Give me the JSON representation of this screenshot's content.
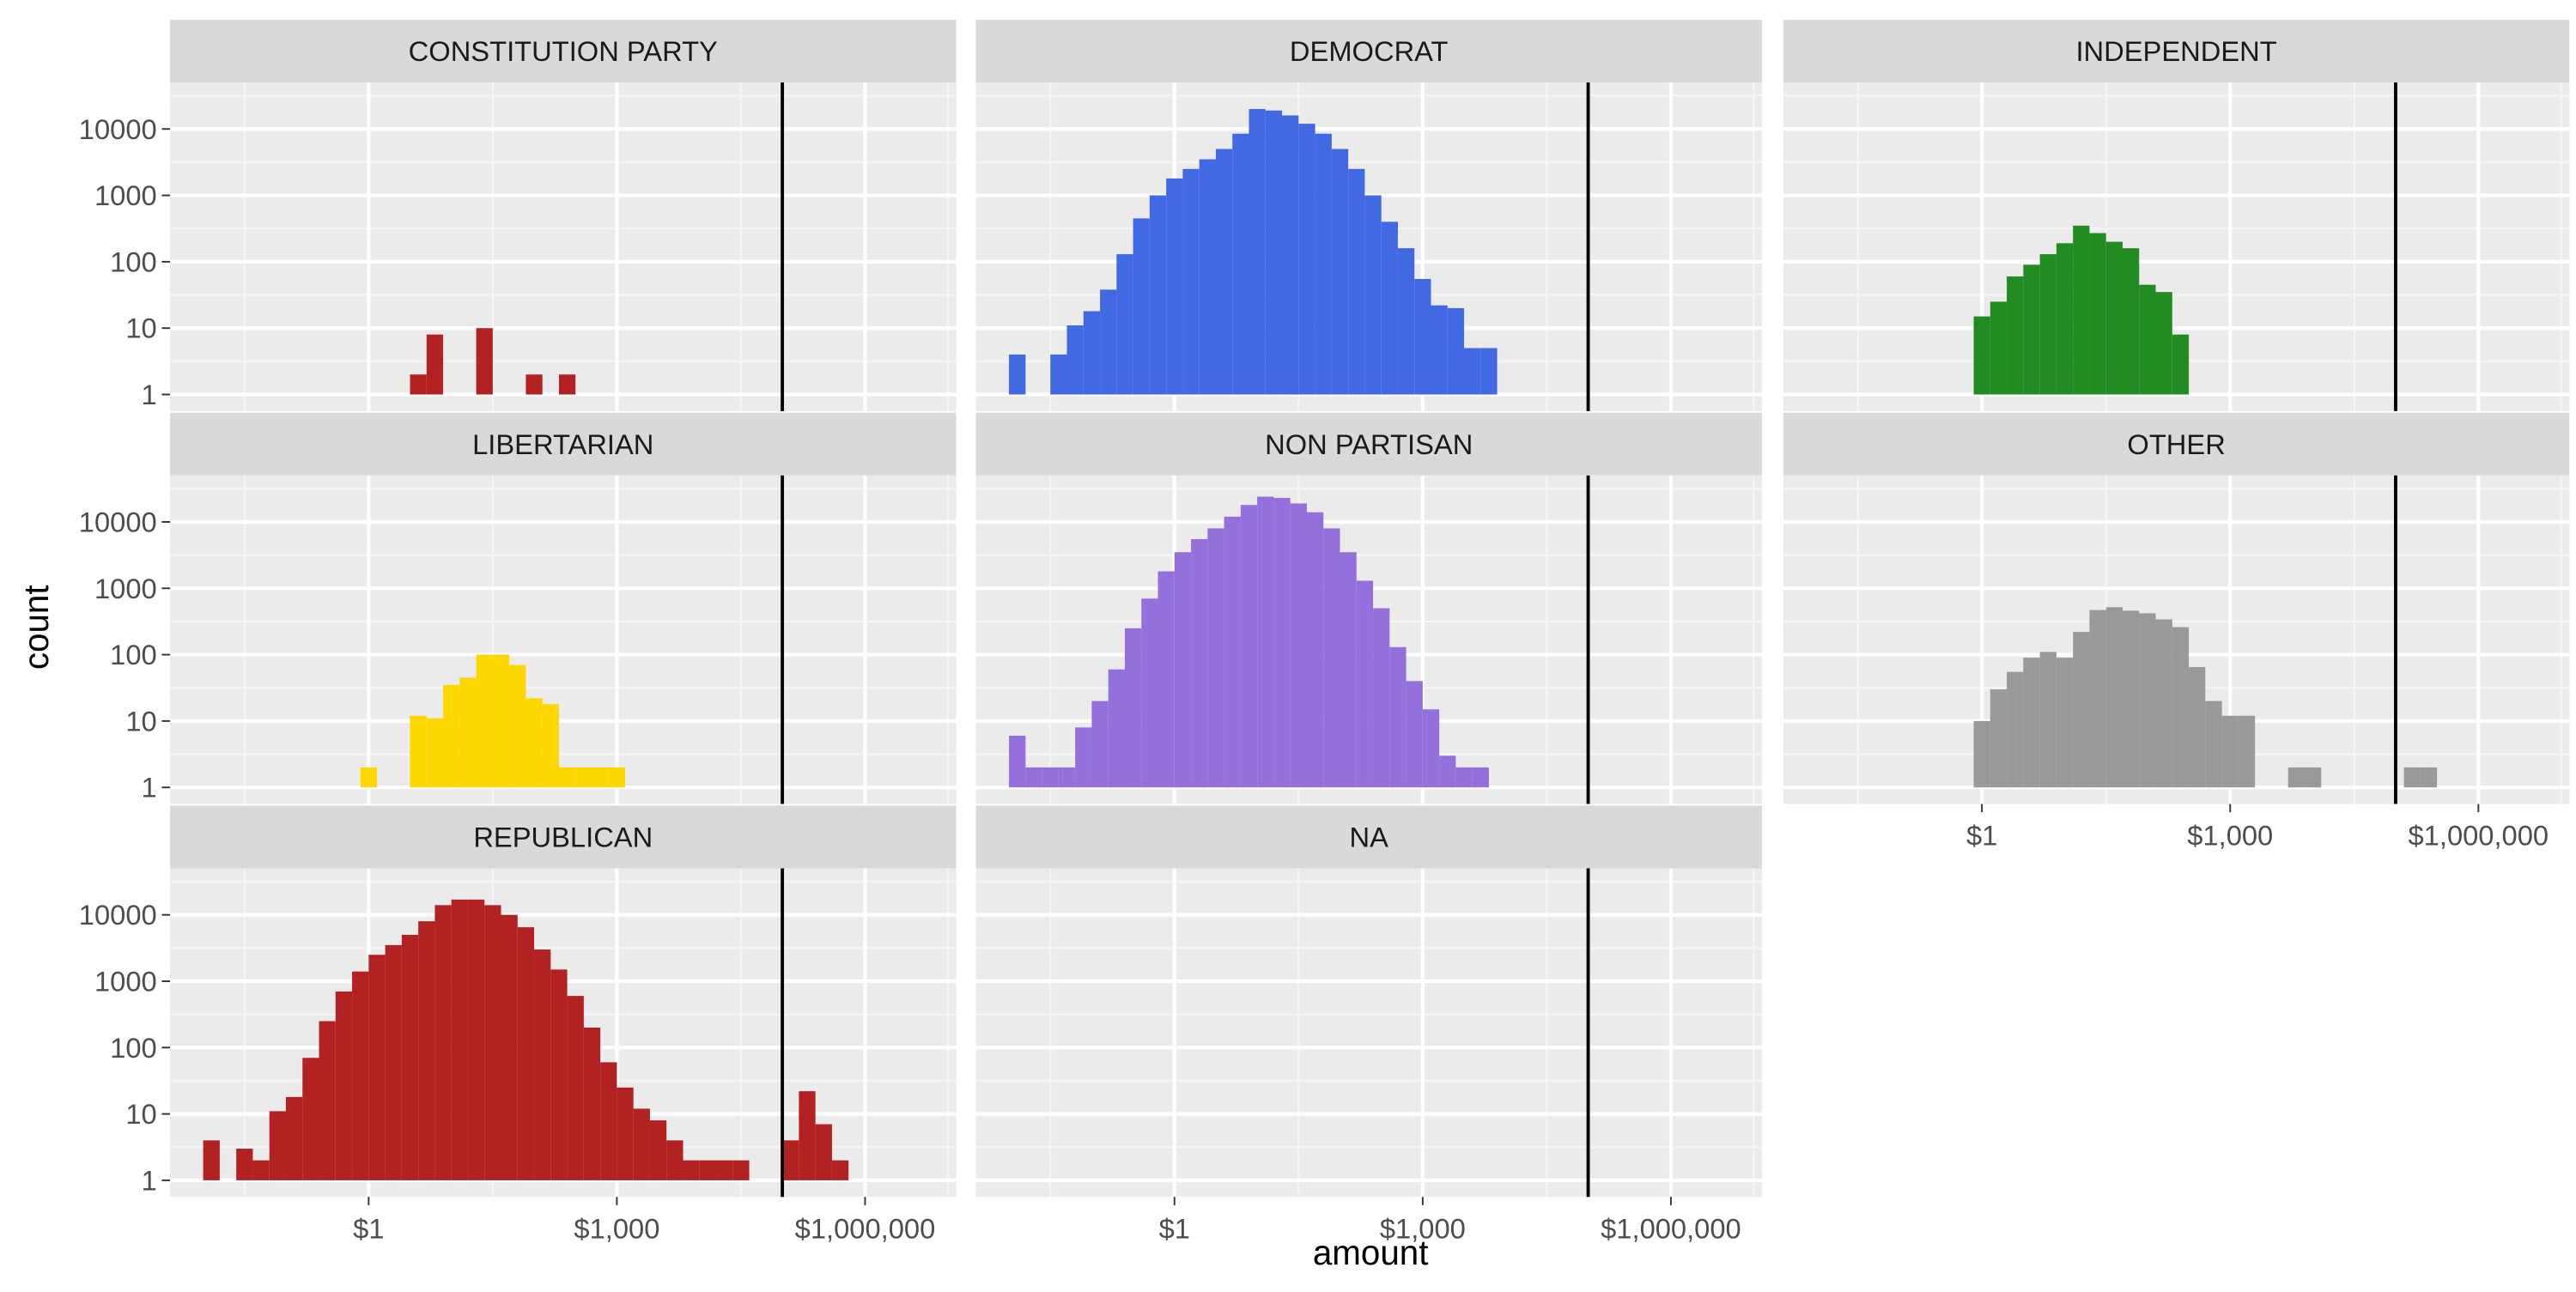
{
  "chart_data": {
    "type": "histogram",
    "facet_by": "party",
    "xlabel": "amount",
    "ylabel": "count",
    "x_scale": "log10",
    "y_scale": "log10",
    "x_ticks": [
      {
        "value": 1,
        "label": "$1"
      },
      {
        "value": 1000,
        "label": "$1,000"
      },
      {
        "value": 1000000,
        "label": "$1,000,000"
      }
    ],
    "y_ticks": [
      {
        "value": 1,
        "label": "1"
      },
      {
        "value": 10,
        "label": "10"
      },
      {
        "value": 100,
        "label": "100"
      },
      {
        "value": 1000,
        "label": "1000"
      },
      {
        "value": 10000,
        "label": "10000"
      }
    ],
    "reference_line_x": 100000,
    "bin_width_log10": 0.2,
    "grid": true,
    "legend": "none",
    "panels": [
      {
        "name": "CONSTITUTION PARTY",
        "color": "#B22222",
        "bins": [
          {
            "x_start": 3.162,
            "count": 2
          },
          {
            "x_start": 5.012,
            "count": 8
          },
          {
            "x_start": 19.95,
            "count": 10
          },
          {
            "x_start": 79.43,
            "count": 2
          },
          {
            "x_start": 199.5,
            "count": 2
          }
        ]
      },
      {
        "name": "DEMOCRAT",
        "color": "#4169E1",
        "bins": [
          {
            "x_start": 0.01,
            "count": 4
          },
          {
            "x_start": 0.03162,
            "count": 4
          },
          {
            "x_start": 0.05012,
            "count": 11
          },
          {
            "x_start": 0.07943,
            "count": 18
          },
          {
            "x_start": 0.1259,
            "count": 38
          },
          {
            "x_start": 0.1995,
            "count": 130
          },
          {
            "x_start": 0.3162,
            "count": 450
          },
          {
            "x_start": 0.5012,
            "count": 1000
          },
          {
            "x_start": 0.7943,
            "count": 1800
          },
          {
            "x_start": 1.259,
            "count": 2500
          },
          {
            "x_start": 1.995,
            "count": 3500
          },
          {
            "x_start": 3.162,
            "count": 5000
          },
          {
            "x_start": 5.012,
            "count": 8500
          },
          {
            "x_start": 7.943,
            "count": 20000
          },
          {
            "x_start": 12.59,
            "count": 19000
          },
          {
            "x_start": 19.95,
            "count": 16000
          },
          {
            "x_start": 31.62,
            "count": 12000
          },
          {
            "x_start": 50.12,
            "count": 8500
          },
          {
            "x_start": 79.43,
            "count": 5000
          },
          {
            "x_start": 125.9,
            "count": 2500
          },
          {
            "x_start": 199.5,
            "count": 1000
          },
          {
            "x_start": 316.2,
            "count": 400
          },
          {
            "x_start": 501.2,
            "count": 160
          },
          {
            "x_start": 794.3,
            "count": 55
          },
          {
            "x_start": 1259,
            "count": 22
          },
          {
            "x_start": 1995,
            "count": 20
          },
          {
            "x_start": 3162,
            "count": 5
          },
          {
            "x_start": 5012,
            "count": 5
          }
        ]
      },
      {
        "name": "INDEPENDENT",
        "color": "#228B22",
        "bins": [
          {
            "x_start": 0.7943,
            "count": 15
          },
          {
            "x_start": 1.259,
            "count": 25
          },
          {
            "x_start": 1.995,
            "count": 60
          },
          {
            "x_start": 3.162,
            "count": 90
          },
          {
            "x_start": 5.012,
            "count": 130
          },
          {
            "x_start": 7.943,
            "count": 190
          },
          {
            "x_start": 12.59,
            "count": 350
          },
          {
            "x_start": 19.95,
            "count": 270
          },
          {
            "x_start": 31.62,
            "count": 200
          },
          {
            "x_start": 50.12,
            "count": 160
          },
          {
            "x_start": 79.43,
            "count": 45
          },
          {
            "x_start": 125.9,
            "count": 35
          },
          {
            "x_start": 199.5,
            "count": 8
          }
        ]
      },
      {
        "name": "LIBERTARIAN",
        "color": "#FFD700",
        "bins": [
          {
            "x_start": 0.7943,
            "count": 2
          },
          {
            "x_start": 3.162,
            "count": 12
          },
          {
            "x_start": 5.012,
            "count": 11
          },
          {
            "x_start": 7.943,
            "count": 35
          },
          {
            "x_start": 12.59,
            "count": 45
          },
          {
            "x_start": 19.95,
            "count": 100
          },
          {
            "x_start": 31.62,
            "count": 100
          },
          {
            "x_start": 50.12,
            "count": 70
          },
          {
            "x_start": 79.43,
            "count": 22
          },
          {
            "x_start": 125.9,
            "count": 18
          },
          {
            "x_start": 199.5,
            "count": 2
          },
          {
            "x_start": 316.2,
            "count": 2
          },
          {
            "x_start": 501.2,
            "count": 2
          },
          {
            "x_start": 794.3,
            "count": 2
          }
        ]
      },
      {
        "name": "NON PARTISAN",
        "color": "#9370DB",
        "bins": [
          {
            "x_start": 0.01,
            "count": 6
          },
          {
            "x_start": 0.01585,
            "count": 2
          },
          {
            "x_start": 0.02512,
            "count": 2
          },
          {
            "x_start": 0.03981,
            "count": 2
          },
          {
            "x_start": 0.0631,
            "count": 8
          },
          {
            "x_start": 0.1,
            "count": 20
          },
          {
            "x_start": 0.1585,
            "count": 60
          },
          {
            "x_start": 0.2512,
            "count": 250
          },
          {
            "x_start": 0.3981,
            "count": 700
          },
          {
            "x_start": 0.631,
            "count": 1800
          },
          {
            "x_start": 1.0,
            "count": 3500
          },
          {
            "x_start": 1.585,
            "count": 5500
          },
          {
            "x_start": 2.512,
            "count": 8000
          },
          {
            "x_start": 3.981,
            "count": 12000
          },
          {
            "x_start": 6.31,
            "count": 18000
          },
          {
            "x_start": 10.0,
            "count": 24000
          },
          {
            "x_start": 15.85,
            "count": 23000
          },
          {
            "x_start": 25.12,
            "count": 19000
          },
          {
            "x_start": 39.81,
            "count": 14000
          },
          {
            "x_start": 63.1,
            "count": 8000
          },
          {
            "x_start": 100.0,
            "count": 3500
          },
          {
            "x_start": 158.5,
            "count": 1300
          },
          {
            "x_start": 251.2,
            "count": 500
          },
          {
            "x_start": 398.1,
            "count": 130
          },
          {
            "x_start": 631.0,
            "count": 40
          },
          {
            "x_start": 1000,
            "count": 15
          },
          {
            "x_start": 1585,
            "count": 3
          },
          {
            "x_start": 2512,
            "count": 2
          },
          {
            "x_start": 3981,
            "count": 2
          }
        ]
      },
      {
        "name": "OTHER",
        "color": "#999999",
        "bins": [
          {
            "x_start": 0.7943,
            "count": 10
          },
          {
            "x_start": 1.259,
            "count": 30
          },
          {
            "x_start": 1.995,
            "count": 55
          },
          {
            "x_start": 3.162,
            "count": 90
          },
          {
            "x_start": 5.012,
            "count": 110
          },
          {
            "x_start": 7.943,
            "count": 90
          },
          {
            "x_start": 12.59,
            "count": 220
          },
          {
            "x_start": 19.95,
            "count": 470
          },
          {
            "x_start": 31.62,
            "count": 520
          },
          {
            "x_start": 50.12,
            "count": 460
          },
          {
            "x_start": 79.43,
            "count": 420
          },
          {
            "x_start": 125.9,
            "count": 340
          },
          {
            "x_start": 199.5,
            "count": 260
          },
          {
            "x_start": 316.2,
            "count": 65
          },
          {
            "x_start": 501.2,
            "count": 20
          },
          {
            "x_start": 794.3,
            "count": 12
          },
          {
            "x_start": 1259,
            "count": 12
          },
          {
            "x_start": 1995,
            "count": 1
          },
          {
            "x_start": 3162,
            "count": 1
          },
          {
            "x_start": 5012,
            "count": 2
          },
          {
            "x_start": 7943,
            "count": 2
          },
          {
            "x_start": 12589,
            "count": 1
          },
          {
            "x_start": 19953,
            "count": 1
          },
          {
            "x_start": 31623,
            "count": 1
          },
          {
            "x_start": 50119,
            "count": 1
          },
          {
            "x_start": 79433,
            "count": 1
          },
          {
            "x_start": 125893,
            "count": 2
          },
          {
            "x_start": 199526,
            "count": 2
          }
        ]
      },
      {
        "name": "REPUBLICAN",
        "color": "#B22222",
        "bins": [
          {
            "x_start": 0.01,
            "count": 4
          },
          {
            "x_start": 0.02512,
            "count": 3
          },
          {
            "x_start": 0.03981,
            "count": 2
          },
          {
            "x_start": 0.0631,
            "count": 11
          },
          {
            "x_start": 0.1,
            "count": 18
          },
          {
            "x_start": 0.1585,
            "count": 70
          },
          {
            "x_start": 0.2512,
            "count": 250
          },
          {
            "x_start": 0.3981,
            "count": 700
          },
          {
            "x_start": 0.631,
            "count": 1400
          },
          {
            "x_start": 1.0,
            "count": 2500
          },
          {
            "x_start": 1.585,
            "count": 3500
          },
          {
            "x_start": 2.512,
            "count": 5000
          },
          {
            "x_start": 3.981,
            "count": 8000
          },
          {
            "x_start": 6.31,
            "count": 14000
          },
          {
            "x_start": 10.0,
            "count": 17000
          },
          {
            "x_start": 15.85,
            "count": 17000
          },
          {
            "x_start": 25.12,
            "count": 14000
          },
          {
            "x_start": 39.81,
            "count": 10000
          },
          {
            "x_start": 63.1,
            "count": 6500
          },
          {
            "x_start": 100.0,
            "count": 3000
          },
          {
            "x_start": 158.5,
            "count": 1500
          },
          {
            "x_start": 251.2,
            "count": 600
          },
          {
            "x_start": 398.1,
            "count": 200
          },
          {
            "x_start": 631.0,
            "count": 60
          },
          {
            "x_start": 1000,
            "count": 25
          },
          {
            "x_start": 1585,
            "count": 12
          },
          {
            "x_start": 2512,
            "count": 8
          },
          {
            "x_start": 3981,
            "count": 4
          },
          {
            "x_start": 6310,
            "count": 2
          },
          {
            "x_start": 10000,
            "count": 2
          },
          {
            "x_start": 15849,
            "count": 2
          },
          {
            "x_start": 25119,
            "count": 2
          },
          {
            "x_start": 39811,
            "count": 1
          },
          {
            "x_start": 63096,
            "count": 1
          },
          {
            "x_start": 100000,
            "count": 4
          },
          {
            "x_start": 158489,
            "count": 22
          },
          {
            "x_start": 251189,
            "count": 7
          },
          {
            "x_start": 398107,
            "count": 2
          }
        ]
      },
      {
        "name": "NA",
        "color": "#B22222",
        "bins": []
      }
    ]
  }
}
